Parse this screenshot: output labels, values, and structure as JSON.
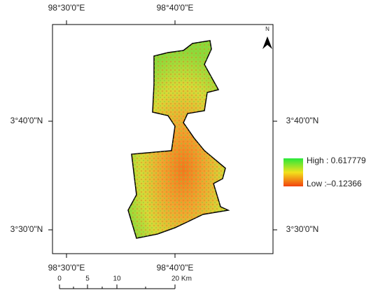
{
  "map": {
    "top_labels": [
      "98°30'0\"E",
      "98°40'0\"E"
    ],
    "bottom_labels": [
      "98°30'0\"E",
      "98°40'0\"E"
    ],
    "left_labels": [
      "3°40'0\"N",
      "3°30'0\"N"
    ],
    "right_labels": [
      "3°40'0\"N",
      "3°30'0\"N"
    ],
    "north": "N",
    "legend": {
      "high": "High : 0.617779",
      "low": "Low :–0.12366"
    },
    "scale_bar": {
      "labels": [
        "0",
        "5",
        "10",
        "20 Km"
      ]
    }
  }
}
